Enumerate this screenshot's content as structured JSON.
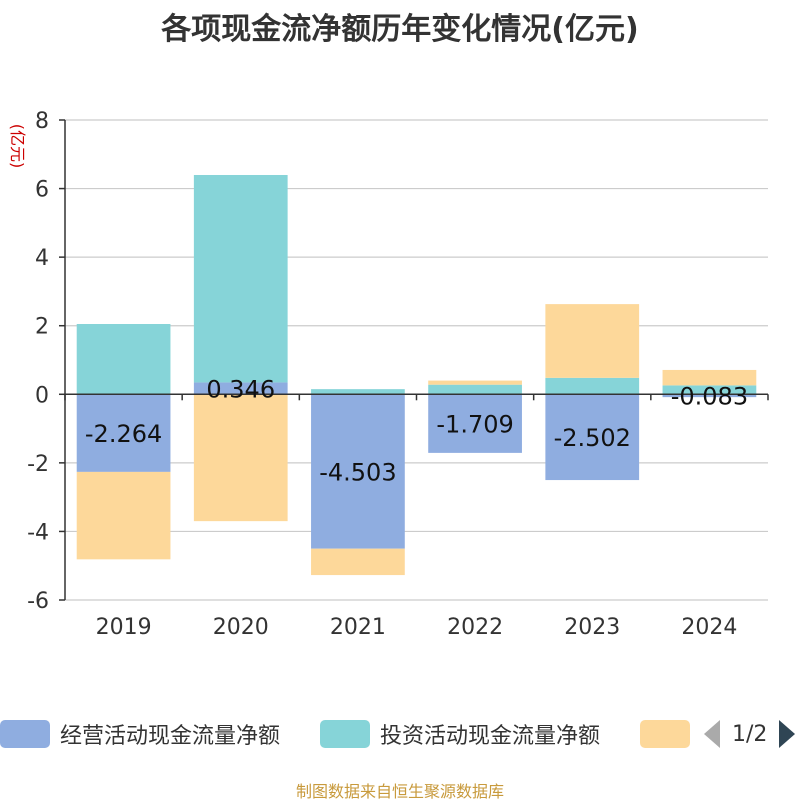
{
  "chart_data": {
    "type": "bar",
    "stacked": true,
    "title": "各项现金流净额历年变化情况(亿元)",
    "ylabel": "(亿元)",
    "categories": [
      "2019",
      "2020",
      "2021",
      "2022",
      "2023",
      "2024"
    ],
    "ylim": [
      -6,
      8
    ],
    "yticks": [
      8,
      6,
      4,
      2,
      0,
      -2,
      -4,
      -6
    ],
    "grid": true,
    "series": [
      {
        "name": "经营活动现金流量净额",
        "values": [
          -2.264,
          0.346,
          -4.503,
          -1.709,
          -2.502,
          -0.083
        ],
        "labels": [
          "-2.264",
          "0.346",
          "-4.503",
          "-1.709",
          "-2.502",
          "-0.083"
        ],
        "color": "#8fade0"
      },
      {
        "name": "投资活动现金流量净额",
        "values": [
          2.05,
          6.05,
          0.15,
          0.28,
          0.48,
          0.26
        ],
        "color": "#86d4d8"
      },
      {
        "name": "",
        "values": [
          -2.55,
          -3.7,
          -0.77,
          0.12,
          2.15,
          0.45
        ],
        "color": "#fdd89a"
      }
    ],
    "legend": {
      "position": "bottom",
      "page": "1/2"
    }
  },
  "footer": {
    "source": "制图数据来自恒生聚源数据库"
  }
}
